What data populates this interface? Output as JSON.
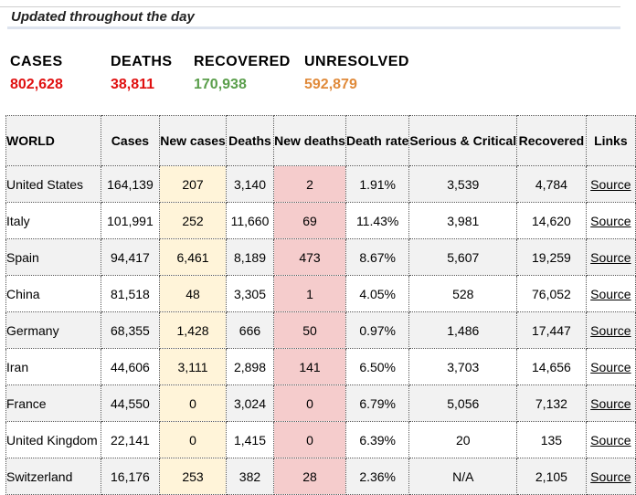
{
  "banner": {
    "text": "Updated throughout the day"
  },
  "summary": [
    {
      "label": "CASES",
      "value": "802,628",
      "color": "#e01010"
    },
    {
      "label": "DEATHS",
      "value": "38,811",
      "color": "#e01010"
    },
    {
      "label": "RECOVERED",
      "value": "170,938",
      "color": "#5a9e4b"
    },
    {
      "label": "UNRESOLVED",
      "value": "592,879",
      "color": "#e08a3a"
    }
  ],
  "table": {
    "headers": [
      "WORLD",
      "Cases",
      "New cases",
      "Deaths",
      "New deaths",
      "Death rate",
      "Serious & Critical",
      "Recovered",
      "Links"
    ],
    "rows": [
      [
        "United States",
        "164,139",
        "207",
        "3,140",
        "2",
        "1.91%",
        "3,539",
        "4,784",
        "Source"
      ],
      [
        "Italy",
        "101,991",
        "252",
        "11,660",
        "69",
        "11.43%",
        "3,981",
        "14,620",
        "Source"
      ],
      [
        "Spain",
        "94,417",
        "6,461",
        "8,189",
        "473",
        "8.67%",
        "5,607",
        "19,259",
        "Source"
      ],
      [
        "China",
        "81,518",
        "48",
        "3,305",
        "1",
        "4.05%",
        "528",
        "76,052",
        "Source"
      ],
      [
        "Germany",
        "68,355",
        "1,428",
        "666",
        "50",
        "0.97%",
        "1,486",
        "17,447",
        "Source"
      ],
      [
        "Iran",
        "44,606",
        "3,111",
        "2,898",
        "141",
        "6.50%",
        "3,703",
        "14,656",
        "Source"
      ],
      [
        "France",
        "44,550",
        "0",
        "3,024",
        "0",
        "6.79%",
        "5,056",
        "7,132",
        "Source"
      ],
      [
        "United Kingdom",
        "22,141",
        "0",
        "1,415",
        "0",
        "6.39%",
        "20",
        "135",
        "Source"
      ],
      [
        "Switzerland",
        "16,176",
        "253",
        "382",
        "28",
        "2.36%",
        "N/A",
        "2,105",
        "Source"
      ]
    ]
  }
}
